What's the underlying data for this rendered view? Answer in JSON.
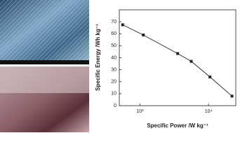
{
  "chart_data": {
    "type": "line",
    "xlabel": "Specific Power /W kg⁻¹",
    "ylabel": "Specific Energy /Wh kg⁻¹",
    "x": [
      560,
      1120,
      3550,
      5600,
      10500,
      22000
    ],
    "values": [
      67.5,
      59,
      43.5,
      37,
      24,
      8
    ],
    "color": "#222222",
    "xscale": "log",
    "xlim": [
      500,
      25000
    ],
    "xticks": [
      {
        "value": 1000,
        "label": "10³"
      },
      {
        "value": 10000,
        "label": "10⁴"
      }
    ],
    "ylim": [
      0,
      80
    ],
    "yticks": [
      0,
      10,
      20,
      30,
      40,
      50,
      60,
      70
    ]
  }
}
